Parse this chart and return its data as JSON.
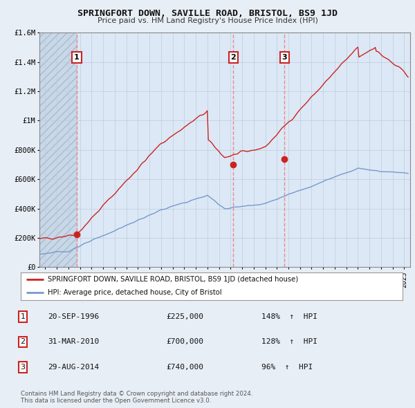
{
  "title": "SPRINGFORT DOWN, SAVILLE ROAD, BRISTOL, BS9 1JD",
  "subtitle": "Price paid vs. HM Land Registry's House Price Index (HPI)",
  "red_line_label": "SPRINGFORT DOWN, SAVILLE ROAD, BRISTOL, BS9 1JD (detached house)",
  "blue_line_label": "HPI: Average price, detached house, City of Bristol",
  "footnote": "Contains HM Land Registry data © Crown copyright and database right 2024.\nThis data is licensed under the Open Government Licence v3.0.",
  "transactions": [
    {
      "num": 1,
      "date": "20-SEP-1996",
      "price": 225000,
      "hpi_pct": "148%",
      "x": 1996.72
    },
    {
      "num": 2,
      "date": "31-MAR-2010",
      "price": 700000,
      "hpi_pct": "128%",
      "x": 2010.25
    },
    {
      "num": 3,
      "date": "29-AUG-2014",
      "price": 740000,
      "hpi_pct": "96%",
      "x": 2014.66
    }
  ],
  "ylim": [
    0,
    1600000
  ],
  "xlim": [
    1993.5,
    2025.5
  ],
  "yticks": [
    0,
    200000,
    400000,
    600000,
    800000,
    1000000,
    1200000,
    1400000,
    1600000
  ],
  "ytick_labels": [
    "£0",
    "£200K",
    "£400K",
    "£600K",
    "£800K",
    "£1M",
    "£1.2M",
    "£1.4M",
    "£1.6M"
  ],
  "bg_color": "#e8eef5",
  "plot_bg": "#dce8f5",
  "red_color": "#cc2222",
  "blue_color": "#7799cc",
  "dashed_color": "#ee8888",
  "grid_color": "#bbccdd",
  "hatch_color": "#aabbcc"
}
